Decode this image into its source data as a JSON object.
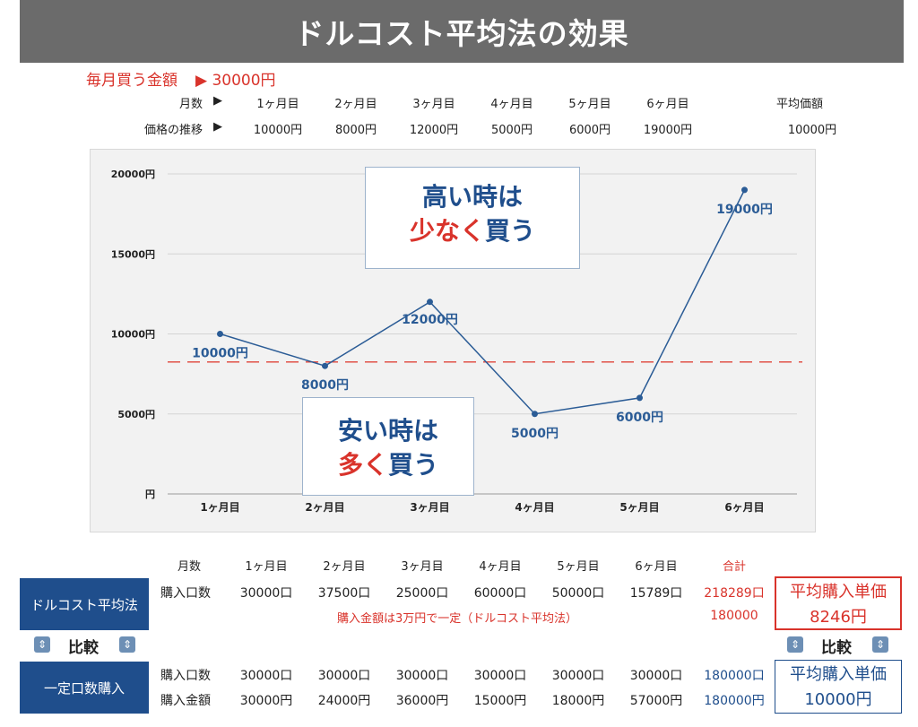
{
  "title": "ドルコスト平均法の効果",
  "monthly": {
    "label": "毎月買う金額",
    "value": "▶ 30000円"
  },
  "header": {
    "months_label": "月数",
    "prices_label": "価格の推移",
    "arrow": "▶",
    "months": [
      "1ヶ月目",
      "2ヶ月目",
      "3ヶ月目",
      "4ヶ月目",
      "5ヶ月目",
      "6ヶ月目"
    ],
    "prices": [
      "10000円",
      "8000円",
      "12000円",
      "5000円",
      "6000円",
      "19000円"
    ],
    "avg_label": "平均価額",
    "avg_value": "10000円"
  },
  "chart_data": {
    "type": "line",
    "categories": [
      "1ヶ月目",
      "2ヶ月目",
      "3ヶ月目",
      "4ヶ月目",
      "5ヶ月目",
      "6ヶ月目"
    ],
    "series": [
      {
        "values": [
          10000,
          8000,
          12000,
          5000,
          6000,
          19000
        ]
      }
    ],
    "point_labels": [
      "10000円",
      "8000円",
      "12000円",
      "5000円",
      "6000円",
      "19000円"
    ],
    "yticks": [
      0,
      5000,
      10000,
      15000,
      20000
    ],
    "ytick_labels": [
      "円",
      "5000円",
      "10000円",
      "15000円",
      "20000円"
    ],
    "ylim": [
      0,
      20000
    ],
    "reference_line": 8246,
    "line_color": "#2b5c96",
    "reference_color": "#e0453a",
    "grid": true
  },
  "callouts": {
    "high_line1": "高い時は",
    "high_line2a": "少なく",
    "high_line2b": "買う",
    "low_line1": "安い時は",
    "low_line2a": "多く",
    "low_line2b": "買う"
  },
  "table": {
    "months_label": "月数",
    "months": [
      "1ヶ月目",
      "2ヶ月目",
      "3ヶ月目",
      "4ヶ月目",
      "5ヶ月目",
      "6ヶ月目"
    ],
    "total_label": "合計",
    "dca": {
      "name": "ドルコスト平均法",
      "row_label": "購入口数",
      "units": [
        "30000口",
        "37500口",
        "25000口",
        "60000口",
        "50000口",
        "15789口"
      ],
      "units_total": "218289口",
      "note": "購入金額は3万円で一定（ドルコスト平均法）",
      "amount_total": "180000",
      "avg_title": "平均購入単価",
      "avg_value": "8246円"
    },
    "compare_label": "比較",
    "fixed": {
      "name": "一定口数購入",
      "units_label": "購入口数",
      "units": [
        "30000口",
        "30000口",
        "30000口",
        "30000口",
        "30000口",
        "30000口"
      ],
      "units_total": "180000口",
      "amount_label": "購入金額",
      "amounts": [
        "30000円",
        "24000円",
        "36000円",
        "15000円",
        "18000円",
        "57000円"
      ],
      "amount_total": "180000円",
      "avg_title": "平均購入単価",
      "avg_value": "10000円"
    }
  }
}
